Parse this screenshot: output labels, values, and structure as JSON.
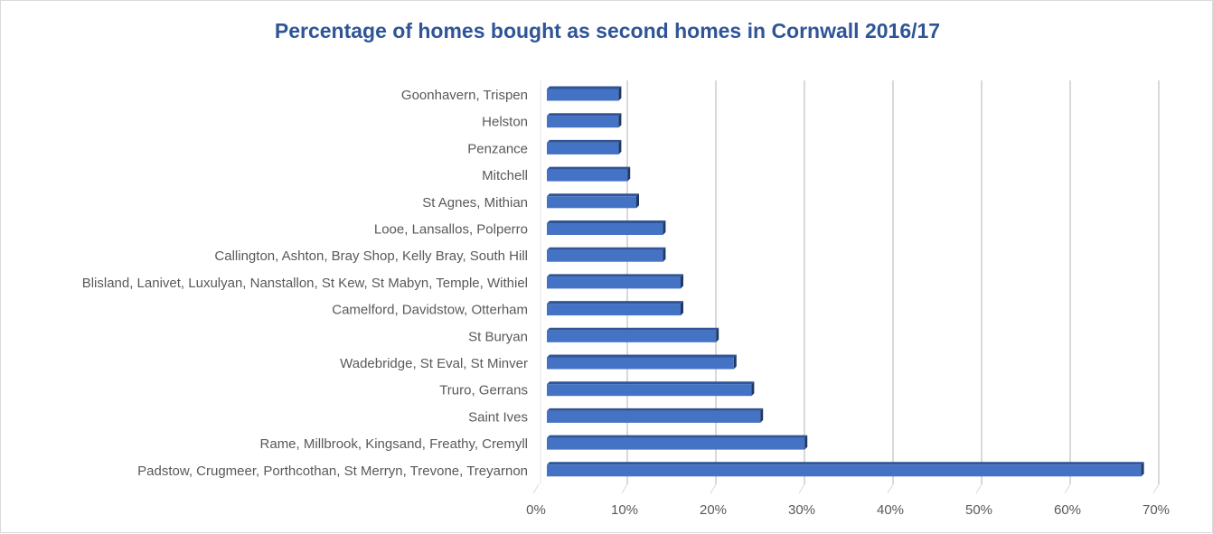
{
  "chart_data": {
    "type": "bar",
    "orientation": "horizontal",
    "style": "3d",
    "title": "Percentage of homes bought as second homes in Cornwall 2016/17",
    "categories": [
      "Goonhavern, Trispen",
      "Helston",
      "Penzance",
      "Mitchell",
      "St Agnes, Mithian",
      "Looe, Lansallos, Polperro",
      "Callington, Ashton, Bray Shop, Kelly Bray, South Hill",
      "Blisland, Lanivet, Luxulyan, Nanstallon, St Kew, St Mabyn, Temple, Withiel",
      "Camelford, Davidstow, Otterham",
      "St Buryan",
      "Wadebridge, St Eval, St Minver",
      "Truro, Gerrans",
      "Saint Ives",
      "Rame, Millbrook, Kingsand, Freathy, Cremyll",
      "Padstow, Crugmeer, Porthcothan, St Merryn, Trevone, Treyarnon"
    ],
    "values": [
      8,
      8,
      8,
      9,
      10,
      13,
      13,
      15,
      15,
      19,
      21,
      23,
      24,
      29,
      67
    ],
    "xlim": [
      0,
      70
    ],
    "xticks": [
      "0%",
      "10%",
      "20%",
      "30%",
      "40%",
      "50%",
      "60%",
      "70%"
    ],
    "xlabel": "",
    "ylabel": "",
    "grid": true,
    "legend": "none",
    "bar_color": "#4472c4",
    "gridline_color": "#d9d9d9"
  }
}
